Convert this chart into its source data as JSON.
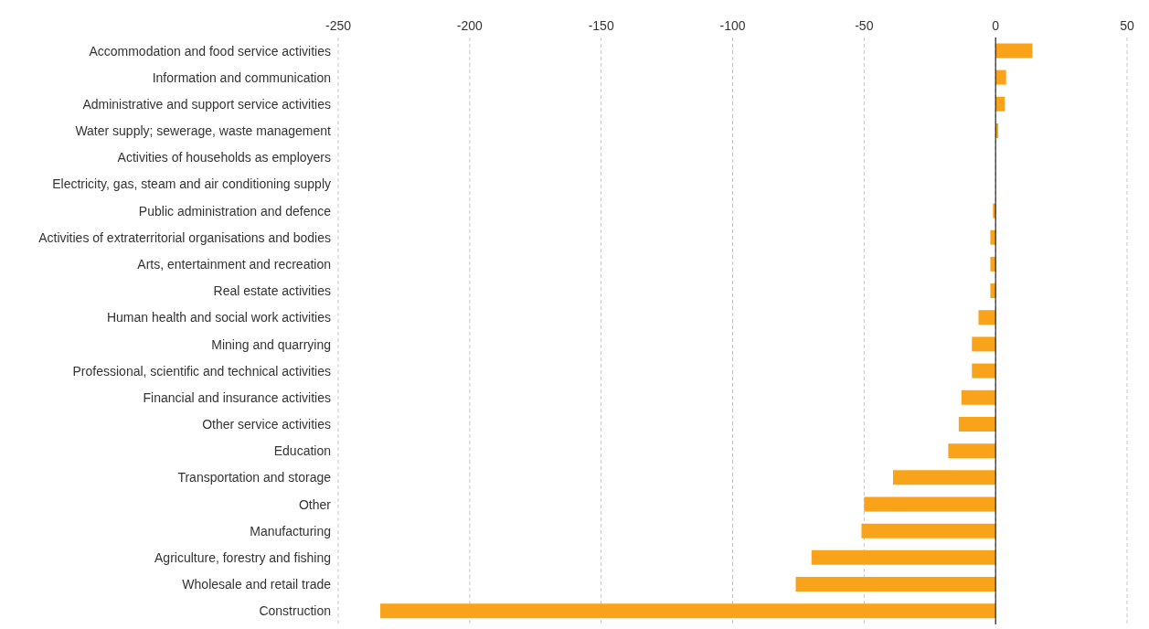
{
  "chart_data": {
    "type": "bar",
    "orientation": "horizontal",
    "categories": [
      "Accommodation and food service activities",
      "Information and communication",
      "Administrative and support service activities",
      "Water supply; sewerage, waste management",
      "Activities of households as employers",
      "Electricity, gas, steam and air conditioning supply",
      "Public administration and defence",
      "Activities of extraterritorial organisations and bodies",
      "Arts, entertainment and recreation",
      "Real estate activities",
      "Human health and social work activities",
      "Mining and quarrying",
      "Professional, scientific and technical activities",
      "Financial and insurance activities",
      "Other service activities",
      "Education",
      "Transportation and storage",
      "Other",
      "Manufacturing",
      "Agriculture, forestry and fishing",
      "Wholesale and retail trade",
      "Construction"
    ],
    "values": [
      14,
      4,
      3.5,
      1,
      0,
      0,
      -1,
      -2,
      -2,
      -2,
      -6.5,
      -9,
      -9,
      -13,
      -14,
      -18,
      -39,
      -50,
      -51,
      -70,
      -76,
      -234
    ],
    "color": "#f9a31b",
    "xlim": [
      -250,
      50
    ],
    "xticks": [
      -250,
      -200,
      -150,
      -100,
      -50,
      0,
      50
    ],
    "grid": "x"
  }
}
